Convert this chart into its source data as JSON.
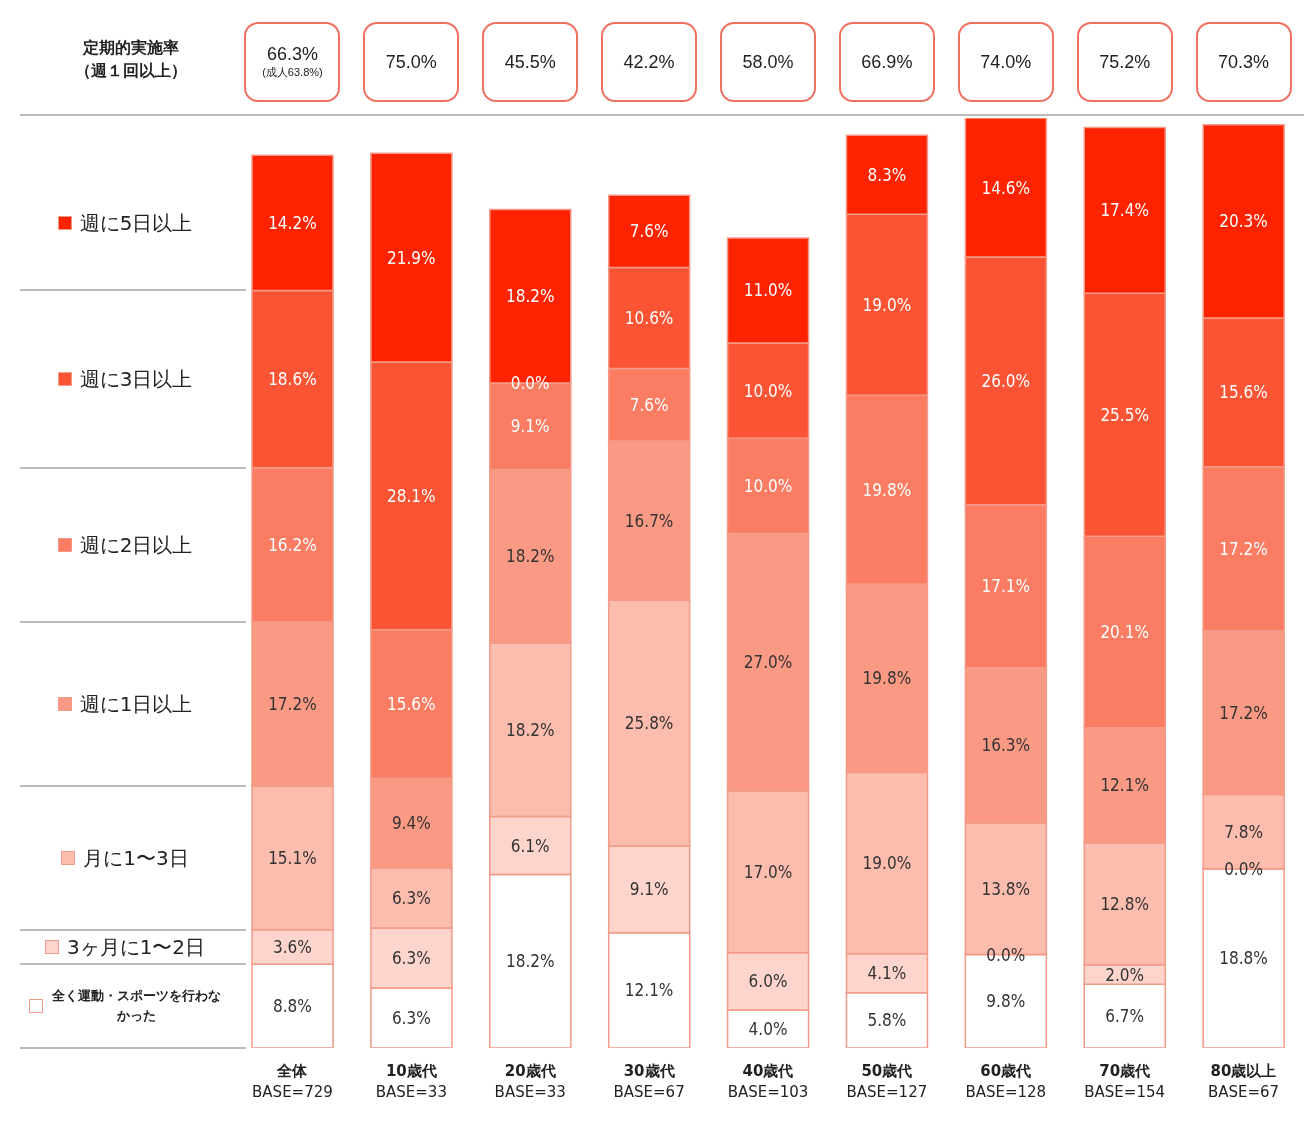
{
  "chart_data": {
    "type": "bar",
    "stacked": true,
    "categories": [
      "全体\nBASE=729",
      "10歳代\nBASE=33",
      "20歳代\nBASE=33",
      "30歳代\nBASE=67",
      "40歳代\nBASE=103",
      "50歳代\nBASE=127",
      "60歳代\nBASE=128",
      "70歳代\nBASE=154",
      "80歳以上\nBASE=67"
    ],
    "series": [
      {
        "name": "全く運動・スポーツを行わなかった",
        "color": "#ffffff",
        "values": [
          8.8,
          6.3,
          18.2,
          12.1,
          4.0,
          5.8,
          9.8,
          6.7,
          18.8
        ],
        "value_labels": [
          "8.8%",
          "6.3%",
          "18.2%",
          "12.1%",
          "4.0%",
          "5.8%",
          "9.8%",
          "6.7%",
          "18.8%"
        ]
      },
      {
        "name": "3ヶ月に1〜2日",
        "color": "#fdd5cc",
        "values": [
          3.6,
          6.3,
          6.1,
          9.1,
          6.0,
          4.1,
          0.0,
          2.0,
          0.0
        ],
        "value_labels": [
          "3.6%",
          "6.3%",
          "6.1%",
          "9.1%",
          "6.0%",
          "4.1%",
          "0.0%",
          "2.0%",
          "0.0%"
        ]
      },
      {
        "name": "月に1〜3日",
        "color": "#fcbcae",
        "values": [
          15.1,
          6.3,
          18.2,
          25.8,
          17.0,
          19.0,
          13.8,
          12.8,
          7.8
        ],
        "value_labels": [
          "15.1%",
          "6.3%",
          "18.2%",
          "25.8%",
          "17.0%",
          "19.0%",
          "13.8%",
          "12.8%",
          "7.8%"
        ]
      },
      {
        "name": "週に1日以上",
        "color": "#fb9a84",
        "values": [
          17.2,
          9.4,
          18.2,
          16.7,
          27.0,
          19.8,
          16.3,
          12.1,
          17.2
        ],
        "value_labels": [
          "17.2%",
          "9.4%",
          "18.2%",
          "16.7%",
          "27.0%",
          "19.8%",
          "16.3%",
          "12.1%",
          "17.2%"
        ]
      },
      {
        "name": "週に2日以上",
        "color": "#fa7c63",
        "values": [
          16.2,
          15.6,
          9.1,
          7.6,
          10.0,
          19.8,
          17.1,
          20.1,
          17.2
        ],
        "value_labels": [
          "16.2%",
          "15.6%",
          "9.1%",
          "7.6%",
          "10.0%",
          "19.8%",
          "17.1%",
          "20.1%",
          "17.2%"
        ]
      },
      {
        "name": "週に3日以上",
        "color": "#fb5435",
        "values": [
          18.6,
          28.1,
          0.0,
          10.6,
          10.0,
          19.0,
          26.0,
          25.5,
          15.6
        ],
        "value_labels": [
          "18.6%",
          "28.1%",
          "0.0%",
          "10.6%",
          "10.0%",
          "19.0%",
          "26.0%",
          "25.5%",
          "15.6%"
        ]
      },
      {
        "name": "週に5日以上",
        "color": "#fd2200",
        "values": [
          14.2,
          21.9,
          18.2,
          7.6,
          11.0,
          8.3,
          14.6,
          17.4,
          20.3
        ],
        "value_labels": [
          "14.2%",
          "21.9%",
          "18.2%",
          "7.6%",
          "11.0%",
          "8.3%",
          "14.6%",
          "17.4%",
          "20.3%"
        ]
      }
    ],
    "legend": "left",
    "annotations": [
      "定期的実施率（週１回以上）",
      "66.3%",
      "(成人63.8%)",
      "75.0%",
      "45.5%",
      "42.2%",
      "58.0%",
      "66.9%",
      "74.0%",
      "75.2%",
      "70.3%"
    ]
  }
}
